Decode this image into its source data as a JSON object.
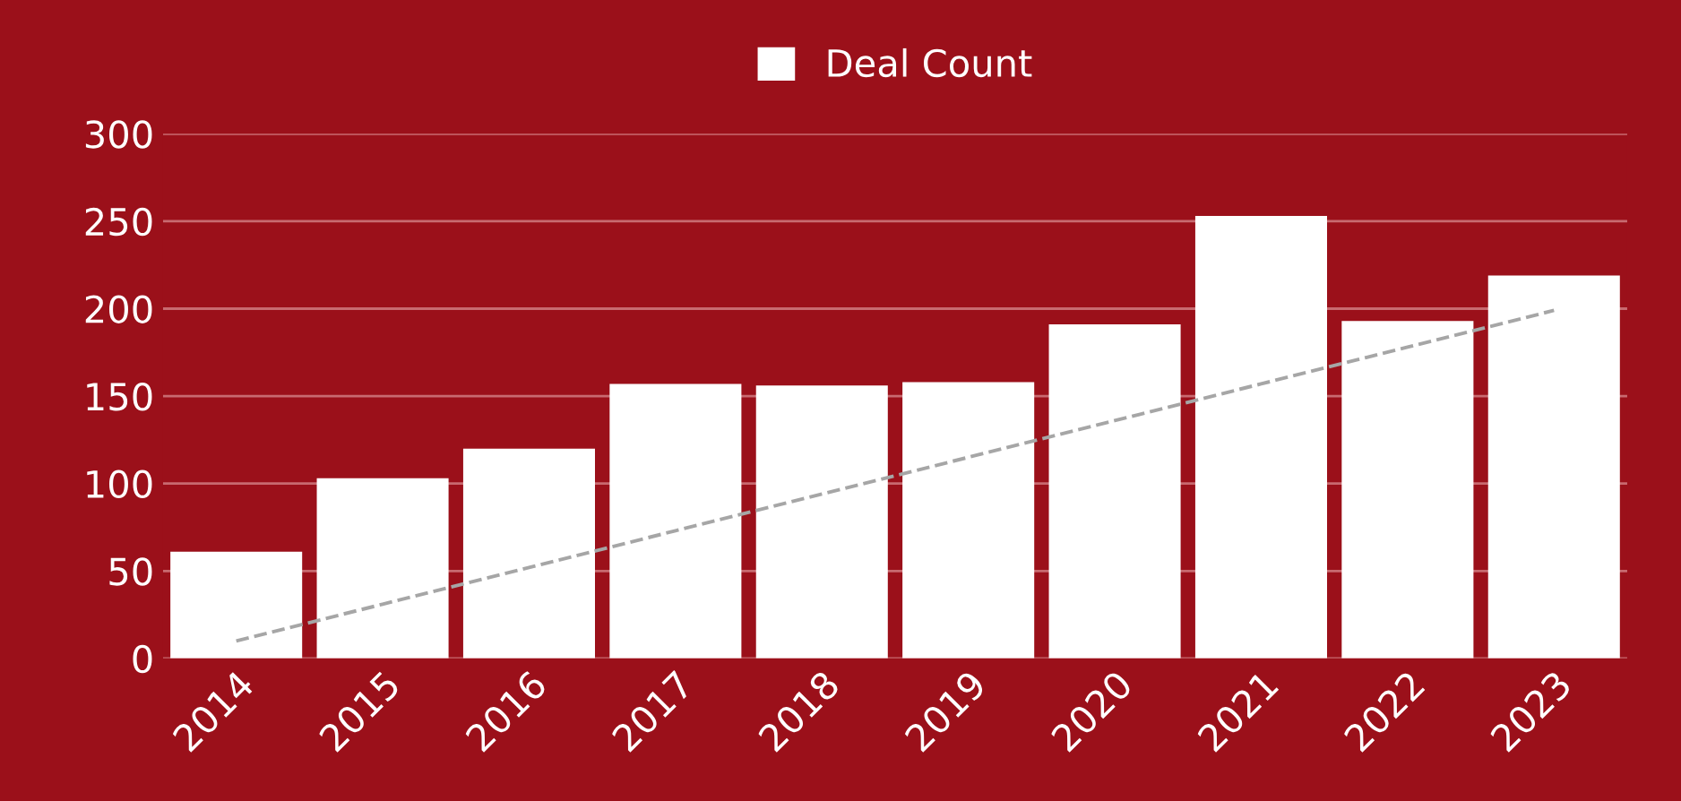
{
  "chart_data": {
    "type": "bar",
    "categories": [
      "2014",
      "2015",
      "2016",
      "2017",
      "2018",
      "2019",
      "2020",
      "2021",
      "2022",
      "2023"
    ],
    "series": [
      {
        "name": "Deal Count",
        "color": "#ffffff",
        "values": [
          61,
          103,
          120,
          157,
          156,
          158,
          191,
          253,
          193,
          219
        ]
      },
      {
        "type": "line",
        "color": "#a6a6a6",
        "values": [
          10,
          31,
          52,
          73,
          94,
          115,
          136,
          157,
          178,
          199
        ],
        "line_style": "dashed",
        "marker": "none"
      }
    ],
    "ylim": [
      0,
      300
    ],
    "yticks": [
      0,
      50,
      100,
      150,
      200,
      250,
      300
    ],
    "grid": "y",
    "legend": "top"
  }
}
